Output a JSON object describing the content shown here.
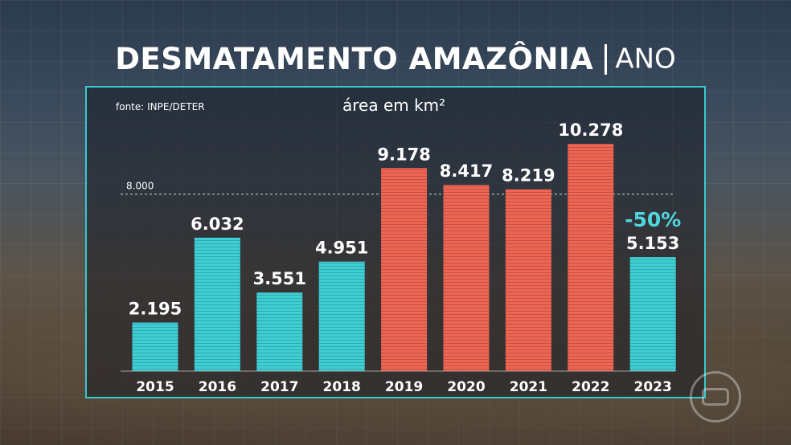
{
  "title": {
    "main": "DESMATAMENTO AMAZÔNIA",
    "sub": "ANO"
  },
  "source": "fonte: INPE/DETER",
  "unit_label": "área em km²",
  "colors": {
    "accent": "#35c9d0",
    "bar_cyan": "#3ecfd4",
    "bar_red": "#ef6553",
    "highlight_text": "#4fd6de"
  },
  "chart_data": {
    "type": "bar",
    "categories": [
      "2015",
      "2016",
      "2017",
      "2018",
      "2019",
      "2020",
      "2021",
      "2022",
      "2023"
    ],
    "values": [
      2195,
      6032,
      3551,
      4951,
      9178,
      8417,
      8219,
      10278,
      5153
    ],
    "value_labels": [
      "2.195",
      "6.032",
      "3.551",
      "4.951",
      "9.178",
      "8.417",
      "8.219",
      "10.278",
      "5.153"
    ],
    "bar_colors": [
      "cyan",
      "cyan",
      "cyan",
      "cyan",
      "red",
      "red",
      "red",
      "red",
      "cyan"
    ],
    "reference_line": {
      "value": 8000,
      "label": "8.000",
      "style": "dashed"
    },
    "annotations": [
      {
        "category": "2023",
        "text": "-50%"
      }
    ],
    "ylim": [
      0,
      11000
    ],
    "grid": false,
    "legend": "none",
    "xlabel": "",
    "ylabel": ""
  },
  "logo": "globo-logo-icon"
}
